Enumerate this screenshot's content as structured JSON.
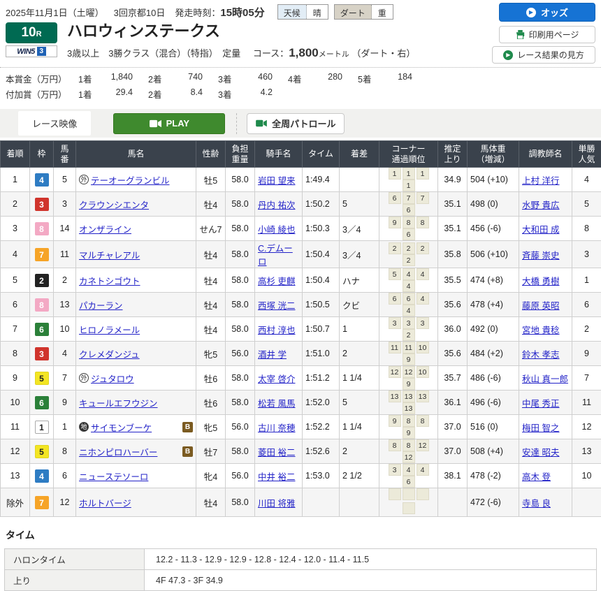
{
  "header": {
    "date": "2025年11月1日（土曜）",
    "meeting": "3回京都10日",
    "start_label": "発走時刻：",
    "start_time": "15時05分",
    "weather_label": "天候",
    "weather_value": "晴",
    "track_label": "ダート",
    "track_value": "重",
    "odds_button": "オッズ",
    "print_button": "印刷用ページ",
    "guide_button": "レース結果の見方"
  },
  "race": {
    "number": "10",
    "number_suffix": "R",
    "win5_word": "WIN5",
    "win5_num": "3",
    "title": "ハロウィンステークス",
    "conditions": "3歳以上　3勝クラス（混合）（特指）　定量",
    "course_label": "コース：",
    "distance": "1,800",
    "distance_unit": "メートル",
    "course_note": "（ダート・右）"
  },
  "prizes": {
    "main_label": "本賞金（万円）",
    "added_label": "付加賞（万円）",
    "main": [
      {
        "place": "1着",
        "amount": "1,840"
      },
      {
        "place": "2着",
        "amount": "740"
      },
      {
        "place": "3着",
        "amount": "460"
      },
      {
        "place": "4着",
        "amount": "280"
      },
      {
        "place": "5着",
        "amount": "184"
      }
    ],
    "added": [
      {
        "place": "1着",
        "amount": "29.4"
      },
      {
        "place": "2着",
        "amount": "8.4"
      },
      {
        "place": "3着",
        "amount": "4.2"
      }
    ]
  },
  "video": {
    "label": "レース映像",
    "play": "PLAY",
    "patrol": "全周パトロール"
  },
  "results": {
    "columns": [
      "着順",
      "枠",
      "馬\n番",
      "馬名",
      "性齢",
      "負担\n重量",
      "騎手名",
      "タイム",
      "着差",
      "コーナー\n通過順位",
      "推定\n上り",
      "馬体重\n（増減）",
      "調教師名",
      "単勝\n人気"
    ],
    "frame_colors": {
      "1": {
        "bg": "#ffffff",
        "fg": "#222222",
        "border": "#aaaaaa"
      },
      "2": {
        "bg": "#222222",
        "fg": "#ffffff",
        "border": "#222222"
      },
      "3": {
        "bg": "#d0342c",
        "fg": "#ffffff",
        "border": "#d0342c"
      },
      "4": {
        "bg": "#2e7cc3",
        "fg": "#ffffff",
        "border": "#2e7cc3"
      },
      "5": {
        "bg": "#f3e523",
        "fg": "#222222",
        "border": "#e0d520"
      },
      "6": {
        "bg": "#2b8039",
        "fg": "#ffffff",
        "border": "#2b8039"
      },
      "7": {
        "bg": "#f6a427",
        "fg": "#ffffff",
        "border": "#f6a427"
      },
      "8": {
        "bg": "#f3a9c4",
        "fg": "#ffffff",
        "border": "#f3a9c4"
      }
    },
    "rows": [
      {
        "pos": "1",
        "frame": "4",
        "num": "5",
        "mark": "外",
        "horse": "テーオーグランビル",
        "blinkers": false,
        "sexage": "牡5",
        "weight": "58.0",
        "jockey": "岩田 望来",
        "time": "1:49.4",
        "margin": "",
        "corners": [
          "1",
          "1",
          "1",
          "1"
        ],
        "last3f": "34.9",
        "body": "504 (+10)",
        "trainer": "上村 洋行",
        "pop": "4"
      },
      {
        "pos": "2",
        "frame": "3",
        "num": "3",
        "mark": "",
        "horse": "クラウンシエンタ",
        "blinkers": false,
        "sexage": "牡4",
        "weight": "58.0",
        "jockey": "丹内 祐次",
        "time": "1:50.2",
        "margin": "5",
        "corners": [
          "6",
          "7",
          "7",
          "6"
        ],
        "last3f": "35.1",
        "body": "498 (0)",
        "trainer": "水野 貴広",
        "pop": "5"
      },
      {
        "pos": "3",
        "frame": "8",
        "num": "14",
        "mark": "",
        "horse": "オンザライン",
        "blinkers": false,
        "sexage": "せん7",
        "weight": "58.0",
        "jockey": "小崎 綾也",
        "time": "1:50.3",
        "margin": "3／4",
        "corners": [
          "9",
          "8",
          "8",
          "6"
        ],
        "last3f": "35.1",
        "body": "456 (-6)",
        "trainer": "大和田 成",
        "pop": "8"
      },
      {
        "pos": "4",
        "frame": "7",
        "num": "11",
        "mark": "",
        "horse": "マルチャレアル",
        "blinkers": false,
        "sexage": "牡4",
        "weight": "58.0",
        "jockey": "C.デムーロ",
        "time": "1:50.4",
        "margin": "3／4",
        "corners": [
          "2",
          "2",
          "2",
          "2"
        ],
        "last3f": "35.8",
        "body": "506 (+10)",
        "trainer": "斉藤 崇史",
        "pop": "3"
      },
      {
        "pos": "5",
        "frame": "2",
        "num": "2",
        "mark": "",
        "horse": "カネトシゴウト",
        "blinkers": false,
        "sexage": "牡4",
        "weight": "58.0",
        "jockey": "高杉 吏麒",
        "time": "1:50.4",
        "margin": "ハナ",
        "corners": [
          "5",
          "4",
          "4",
          "4"
        ],
        "last3f": "35.5",
        "body": "474 (+8)",
        "trainer": "大橋 勇樹",
        "pop": "1"
      },
      {
        "pos": "6",
        "frame": "8",
        "num": "13",
        "mark": "",
        "horse": "パカーラン",
        "blinkers": false,
        "sexage": "牡4",
        "weight": "58.0",
        "jockey": "西塚 洸二",
        "time": "1:50.5",
        "margin": "クビ",
        "corners": [
          "6",
          "6",
          "4",
          "4"
        ],
        "last3f": "35.6",
        "body": "478 (+4)",
        "trainer": "藤原 英昭",
        "pop": "6"
      },
      {
        "pos": "7",
        "frame": "6",
        "num": "10",
        "mark": "",
        "horse": "ヒロノラメール",
        "blinkers": false,
        "sexage": "牡4",
        "weight": "58.0",
        "jockey": "西村 淳也",
        "time": "1:50.7",
        "margin": "1",
        "corners": [
          "3",
          "3",
          "3",
          "2"
        ],
        "last3f": "36.0",
        "body": "492 (0)",
        "trainer": "宮地 貴稔",
        "pop": "2"
      },
      {
        "pos": "8",
        "frame": "3",
        "num": "4",
        "mark": "",
        "horse": "クレメダンジュ",
        "blinkers": false,
        "sexage": "牝5",
        "weight": "56.0",
        "jockey": "酒井 学",
        "time": "1:51.0",
        "margin": "2",
        "corners": [
          "11",
          "11",
          "10",
          "9"
        ],
        "last3f": "35.6",
        "body": "484 (+2)",
        "trainer": "鈴木 孝志",
        "pop": "9"
      },
      {
        "pos": "9",
        "frame": "5",
        "num": "7",
        "mark": "外",
        "horse": "ジュタロウ",
        "blinkers": false,
        "sexage": "牡6",
        "weight": "58.0",
        "jockey": "太宰 啓介",
        "time": "1:51.2",
        "margin": "1 1/4",
        "corners": [
          "12",
          "12",
          "10",
          "9"
        ],
        "last3f": "35.7",
        "body": "486 (-6)",
        "trainer": "秋山 真一郎",
        "pop": "7"
      },
      {
        "pos": "10",
        "frame": "6",
        "num": "9",
        "mark": "",
        "horse": "キュールエフウジン",
        "blinkers": false,
        "sexage": "牡6",
        "weight": "58.0",
        "jockey": "松若 風馬",
        "time": "1:52.0",
        "margin": "5",
        "corners": [
          "13",
          "13",
          "13",
          "13"
        ],
        "last3f": "36.1",
        "body": "496 (-6)",
        "trainer": "中尾 秀正",
        "pop": "11"
      },
      {
        "pos": "11",
        "frame": "1",
        "num": "1",
        "mark": "地",
        "horse": "サイモンブーケ",
        "blinkers": true,
        "sexage": "牝5",
        "weight": "56.0",
        "jockey": "古川 奈穂",
        "time": "1:52.2",
        "margin": "1 1/4",
        "corners": [
          "9",
          "8",
          "8",
          "9"
        ],
        "last3f": "37.0",
        "body": "516 (0)",
        "trainer": "梅田 智之",
        "pop": "12"
      },
      {
        "pos": "12",
        "frame": "5",
        "num": "8",
        "mark": "",
        "horse": "ニホンピロハーバー",
        "blinkers": true,
        "sexage": "牡7",
        "weight": "58.0",
        "jockey": "菱田 裕二",
        "time": "1:52.6",
        "margin": "2",
        "corners": [
          "8",
          "8",
          "12",
          "12"
        ],
        "last3f": "37.0",
        "body": "508 (+4)",
        "trainer": "安達 昭夫",
        "pop": "13"
      },
      {
        "pos": "13",
        "frame": "4",
        "num": "6",
        "mark": "",
        "horse": "ニューステソーロ",
        "blinkers": false,
        "sexage": "牝4",
        "weight": "56.0",
        "jockey": "中井 裕二",
        "time": "1:53.0",
        "margin": "2 1/2",
        "corners": [
          "3",
          "4",
          "4",
          "6"
        ],
        "last3f": "38.1",
        "body": "478 (-2)",
        "trainer": "高木 登",
        "pop": "10"
      },
      {
        "pos": "除外",
        "frame": "7",
        "num": "12",
        "mark": "",
        "horse": "ホルトバージ",
        "blinkers": false,
        "sexage": "牡4",
        "weight": "58.0",
        "jockey": "川田 将雅",
        "time": "",
        "margin": "",
        "corners": [
          "",
          "",
          "",
          ""
        ],
        "last3f": "",
        "body": "472 (-6)",
        "trainer": "寺島 良",
        "pop": ""
      }
    ]
  },
  "time_section": {
    "heading": "タイム",
    "rows": [
      {
        "label": "ハロンタイム",
        "value": "12.2 - 11.3 - 12.9 - 12.9 - 12.8 - 12.4 - 12.0 - 11.4 - 11.5"
      },
      {
        "label": "上り",
        "value": "4F 47.3 - 3F 34.9"
      }
    ]
  },
  "colors": {
    "accent_blue": "#1673d4",
    "accent_green": "#3f8a2e",
    "badge_green": "#006a52",
    "table_header": "#3a424c",
    "link_blue": "#2323c8"
  }
}
